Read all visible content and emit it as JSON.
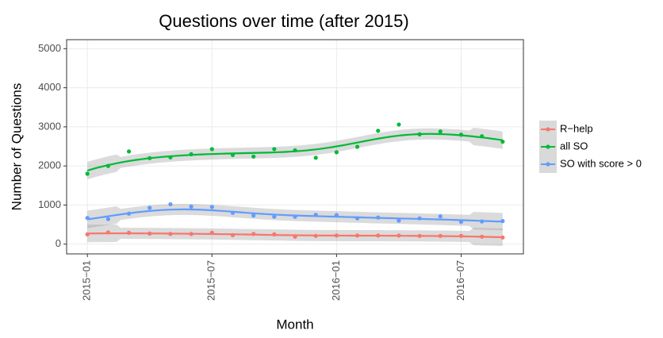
{
  "chart_data": {
    "type": "line",
    "title": "Questions over time (after 2015)",
    "x_label": "Month",
    "y_label": "Number of Questions",
    "x": [
      "2015-01",
      "2015-02",
      "2015-03",
      "2015-04",
      "2015-05",
      "2015-06",
      "2015-07",
      "2015-08",
      "2015-09",
      "2015-10",
      "2015-11",
      "2015-12",
      "2016-01",
      "2016-02",
      "2016-03",
      "2016-04",
      "2016-05",
      "2016-06",
      "2016-07",
      "2016-08",
      "2016-09"
    ],
    "xlim": [
      "2014-12",
      "2016-10"
    ],
    "xticks": [
      {
        "value": "2015-01",
        "label": "2015−01"
      },
      {
        "value": "2015-07",
        "label": "2015−07"
      },
      {
        "value": "2016-01",
        "label": "2016−01"
      },
      {
        "value": "2016-07",
        "label": "2016−07"
      }
    ],
    "ylim": [
      -250,
      5230
    ],
    "yticks": [
      0,
      1000,
      2000,
      3000,
      4000,
      5000
    ],
    "grid": true,
    "legend": "right",
    "series": [
      {
        "name": "R−help",
        "color": "#F8766D",
        "values": [
          250,
          300,
          290,
          270,
          260,
          260,
          290,
          230,
          260,
          250,
          190,
          210,
          220,
          220,
          220,
          220,
          210,
          210,
          210,
          190,
          170
        ]
      },
      {
        "name": "all SO",
        "color": "#00BA38",
        "values": [
          1800,
          2000,
          2370,
          2200,
          2220,
          2300,
          2430,
          2280,
          2240,
          2430,
          2400,
          2210,
          2350,
          2490,
          2900,
          3060,
          2810,
          2880,
          2800,
          2760,
          2620
        ]
      },
      {
        "name": "SO with score > 0",
        "color": "#619CFF",
        "values": [
          670,
          640,
          780,
          930,
          1020,
          960,
          950,
          800,
          730,
          700,
          700,
          750,
          740,
          660,
          680,
          600,
          660,
          710,
          570,
          580,
          590
        ]
      }
    ]
  }
}
